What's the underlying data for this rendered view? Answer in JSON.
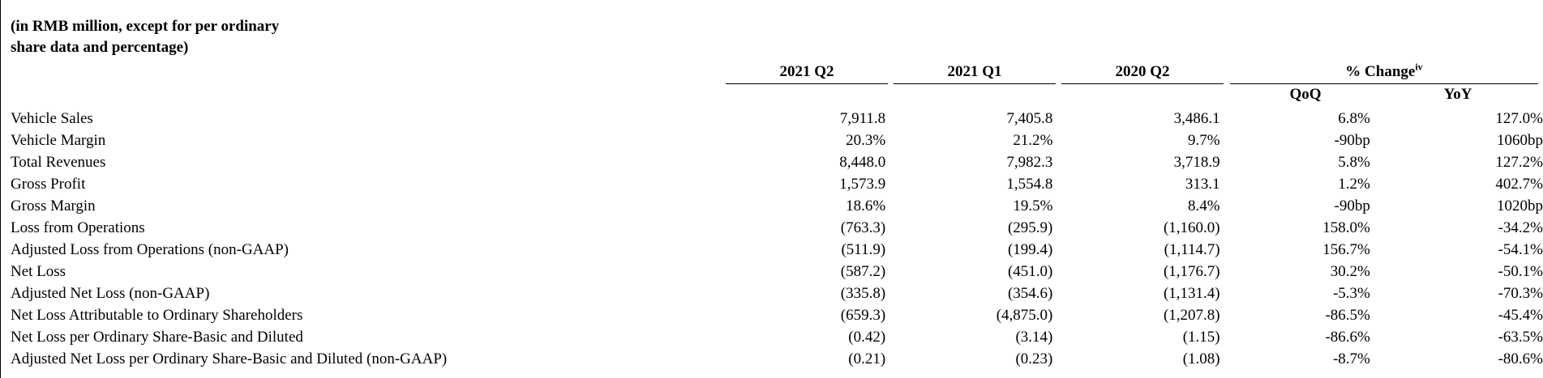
{
  "caption": {
    "line1": "(in RMB million, except for per ordinary",
    "line2": "share data and percentage)"
  },
  "columns": {
    "q2_2021": "2021 Q2",
    "q1_2021": "2021 Q1",
    "q2_2020": "2020 Q2",
    "pct_change": "% Change",
    "pct_change_note": "iv",
    "qoq": "QoQ",
    "yoy": "YoY"
  },
  "rows": [
    {
      "label": "Vehicle Sales",
      "q2_2021": "7,911.8",
      "q1_2021": "7,405.8",
      "q2_2020": "3,486.1",
      "qoq": "6.8%",
      "yoy": "127.0%"
    },
    {
      "label": "Vehicle Margin",
      "q2_2021": "20.3%",
      "q1_2021": "21.2%",
      "q2_2020": "9.7%",
      "qoq": "-90bp",
      "yoy": "1060bp"
    },
    {
      "label": "Total Revenues",
      "q2_2021": "8,448.0",
      "q1_2021": "7,982.3",
      "q2_2020": "3,718.9",
      "qoq": "5.8%",
      "yoy": "127.2%"
    },
    {
      "label": "Gross Profit",
      "q2_2021": "1,573.9",
      "q1_2021": "1,554.8",
      "q2_2020": "313.1",
      "qoq": "1.2%",
      "yoy": "402.7%"
    },
    {
      "label": "Gross Margin",
      "q2_2021": "18.6%",
      "q1_2021": "19.5%",
      "q2_2020": "8.4%",
      "qoq": "-90bp",
      "yoy": "1020bp"
    },
    {
      "label": "Loss from Operations",
      "q2_2021": "(763.3)",
      "q1_2021": "(295.9)",
      "q2_2020": "(1,160.0)",
      "qoq": "158.0%",
      "yoy": "-34.2%"
    },
    {
      "label": "Adjusted Loss from Operations (non-GAAP)",
      "q2_2021": "(511.9)",
      "q1_2021": "(199.4)",
      "q2_2020": "(1,114.7)",
      "qoq": "156.7%",
      "yoy": "-54.1%"
    },
    {
      "label": "Net Loss",
      "q2_2021": "(587.2)",
      "q1_2021": "(451.0)",
      "q2_2020": "(1,176.7)",
      "qoq": "30.2%",
      "yoy": "-50.1%"
    },
    {
      "label": "Adjusted Net Loss (non-GAAP)",
      "q2_2021": "(335.8)",
      "q1_2021": "(354.6)",
      "q2_2020": "(1,131.4)",
      "qoq": "-5.3%",
      "yoy": "-70.3%"
    },
    {
      "label": "Net Loss Attributable to Ordinary Shareholders",
      "q2_2021": "(659.3)",
      "q1_2021": "(4,875.0)",
      "q2_2020": "(1,207.8)",
      "qoq": "-86.5%",
      "yoy": "-45.4%"
    },
    {
      "label": "Net Loss per Ordinary Share-Basic and Diluted",
      "q2_2021": "(0.42)",
      "q1_2021": "(3.14)",
      "q2_2020": "(1.15)",
      "qoq": "-86.6%",
      "yoy": "-63.5%"
    },
    {
      "label": "Adjusted Net Loss per Ordinary Share-Basic and Diluted (non-GAAP)",
      "q2_2021": "(0.21)",
      "q1_2021": "(0.23)",
      "q2_2020": "(1.08)",
      "qoq": "-8.7%",
      "yoy": "-80.6%"
    }
  ]
}
